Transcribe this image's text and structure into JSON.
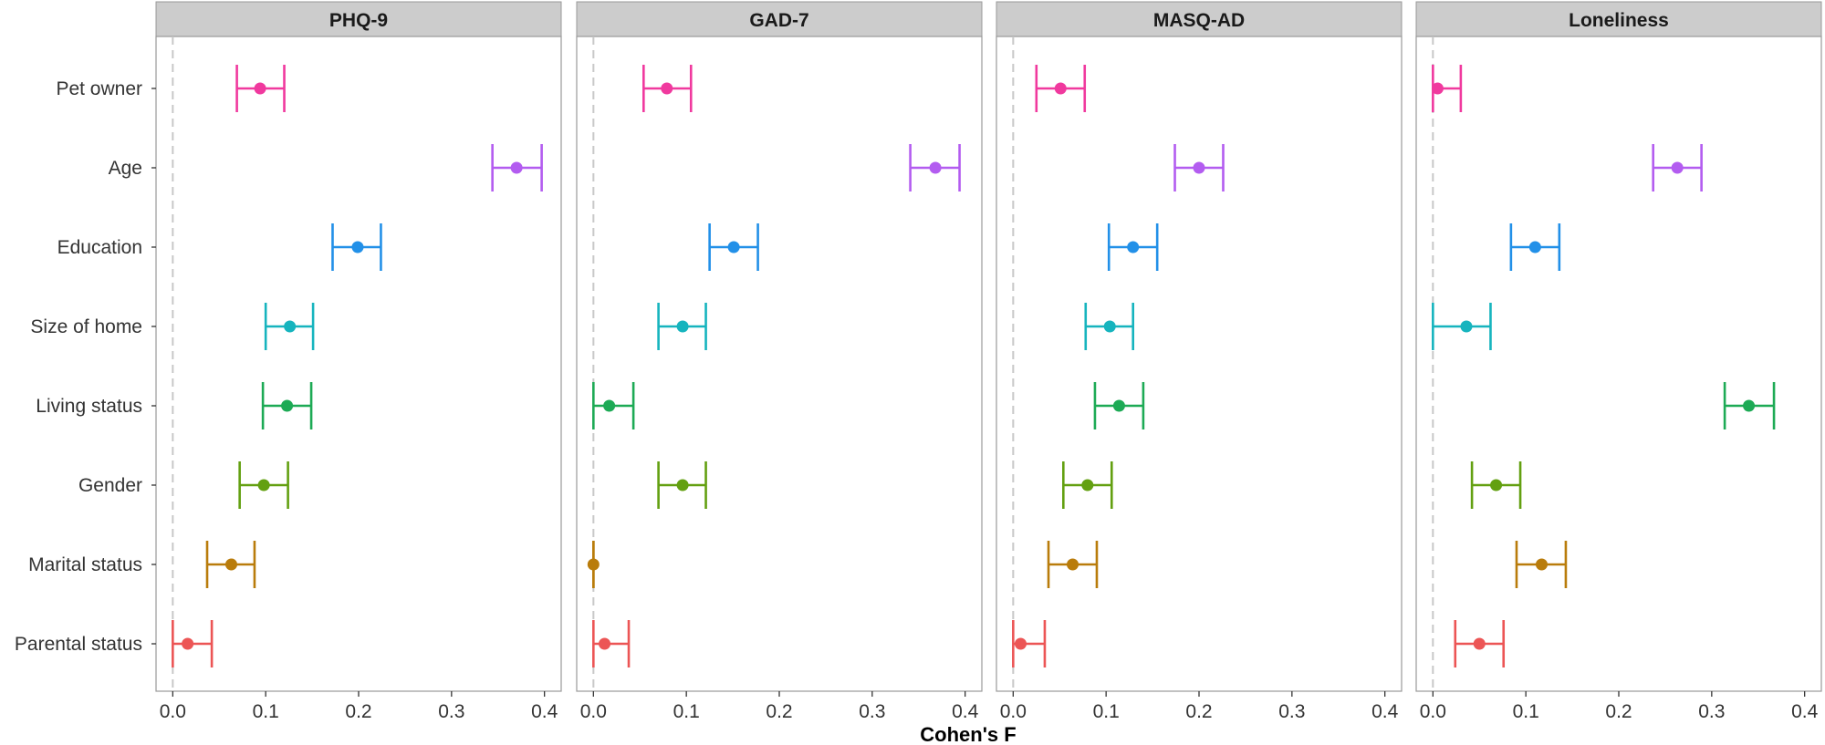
{
  "chart_data": {
    "type": "scatter",
    "subtype": "forest-plot-with-error-bars",
    "xlabel": "Cohen's F",
    "ylabel": "",
    "xlim": [
      -0.018,
      0.418
    ],
    "xticks": [
      0.0,
      0.1,
      0.2,
      0.3,
      0.4
    ],
    "xtick_labels": [
      "0.0",
      "0.1",
      "0.2",
      "0.3",
      "0.4"
    ],
    "reference_line": 0.0,
    "grid": false,
    "legend": "none",
    "categories": [
      "Pet owner",
      "Age",
      "Education",
      "Size of home",
      "Living status",
      "Gender",
      "Marital status",
      "Parental status"
    ],
    "category_colors": {
      "Pet owner": "#F0399E",
      "Age": "#B35CF0",
      "Education": "#2290E8",
      "Size of home": "#16B4BE",
      "Living status": "#1DAA55",
      "Gender": "#63A011",
      "Marital status": "#B97C0B",
      "Parental status": "#EC5555"
    },
    "panels": [
      {
        "title": "PHQ-9",
        "points": [
          {
            "category": "Pet owner",
            "value": 0.094,
            "lower": 0.069,
            "upper": 0.12
          },
          {
            "category": "Age",
            "value": 0.37,
            "lower": 0.344,
            "upper": 0.397
          },
          {
            "category": "Education",
            "value": 0.199,
            "lower": 0.172,
            "upper": 0.224
          },
          {
            "category": "Size of home",
            "value": 0.126,
            "lower": 0.1,
            "upper": 0.151
          },
          {
            "category": "Living status",
            "value": 0.123,
            "lower": 0.097,
            "upper": 0.149
          },
          {
            "category": "Gender",
            "value": 0.098,
            "lower": 0.072,
            "upper": 0.124
          },
          {
            "category": "Marital status",
            "value": 0.063,
            "lower": 0.037,
            "upper": 0.088
          },
          {
            "category": "Parental status",
            "value": 0.016,
            "lower": 0.0,
            "upper": 0.042
          }
        ]
      },
      {
        "title": "GAD-7",
        "points": [
          {
            "category": "Pet owner",
            "value": 0.079,
            "lower": 0.054,
            "upper": 0.105
          },
          {
            "category": "Age",
            "value": 0.368,
            "lower": 0.341,
            "upper": 0.394
          },
          {
            "category": "Education",
            "value": 0.151,
            "lower": 0.125,
            "upper": 0.177
          },
          {
            "category": "Size of home",
            "value": 0.096,
            "lower": 0.07,
            "upper": 0.121
          },
          {
            "category": "Living status",
            "value": 0.017,
            "lower": 0.0,
            "upper": 0.043
          },
          {
            "category": "Gender",
            "value": 0.096,
            "lower": 0.07,
            "upper": 0.121
          },
          {
            "category": "Marital status",
            "value": 0.0,
            "lower": 0.0,
            "upper": 0.0
          },
          {
            "category": "Parental status",
            "value": 0.012,
            "lower": 0.0,
            "upper": 0.038
          }
        ]
      },
      {
        "title": "MASQ-AD",
        "points": [
          {
            "category": "Pet owner",
            "value": 0.051,
            "lower": 0.025,
            "upper": 0.077
          },
          {
            "category": "Age",
            "value": 0.2,
            "lower": 0.174,
            "upper": 0.226
          },
          {
            "category": "Education",
            "value": 0.129,
            "lower": 0.103,
            "upper": 0.155
          },
          {
            "category": "Size of home",
            "value": 0.104,
            "lower": 0.078,
            "upper": 0.129
          },
          {
            "category": "Living status",
            "value": 0.114,
            "lower": 0.088,
            "upper": 0.14
          },
          {
            "category": "Gender",
            "value": 0.08,
            "lower": 0.054,
            "upper": 0.106
          },
          {
            "category": "Marital status",
            "value": 0.064,
            "lower": 0.038,
            "upper": 0.09
          },
          {
            "category": "Parental status",
            "value": 0.008,
            "lower": 0.0,
            "upper": 0.034
          }
        ]
      },
      {
        "title": "Loneliness",
        "points": [
          {
            "category": "Pet owner",
            "value": 0.005,
            "lower": 0.0,
            "upper": 0.03
          },
          {
            "category": "Age",
            "value": 0.263,
            "lower": 0.237,
            "upper": 0.289
          },
          {
            "category": "Education",
            "value": 0.11,
            "lower": 0.084,
            "upper": 0.136
          },
          {
            "category": "Size of home",
            "value": 0.036,
            "lower": 0.0,
            "upper": 0.062
          },
          {
            "category": "Living status",
            "value": 0.34,
            "lower": 0.314,
            "upper": 0.367
          },
          {
            "category": "Gender",
            "value": 0.068,
            "lower": 0.042,
            "upper": 0.094
          },
          {
            "category": "Marital status",
            "value": 0.117,
            "lower": 0.09,
            "upper": 0.143
          },
          {
            "category": "Parental status",
            "value": 0.05,
            "lower": 0.024,
            "upper": 0.076
          }
        ]
      }
    ]
  }
}
